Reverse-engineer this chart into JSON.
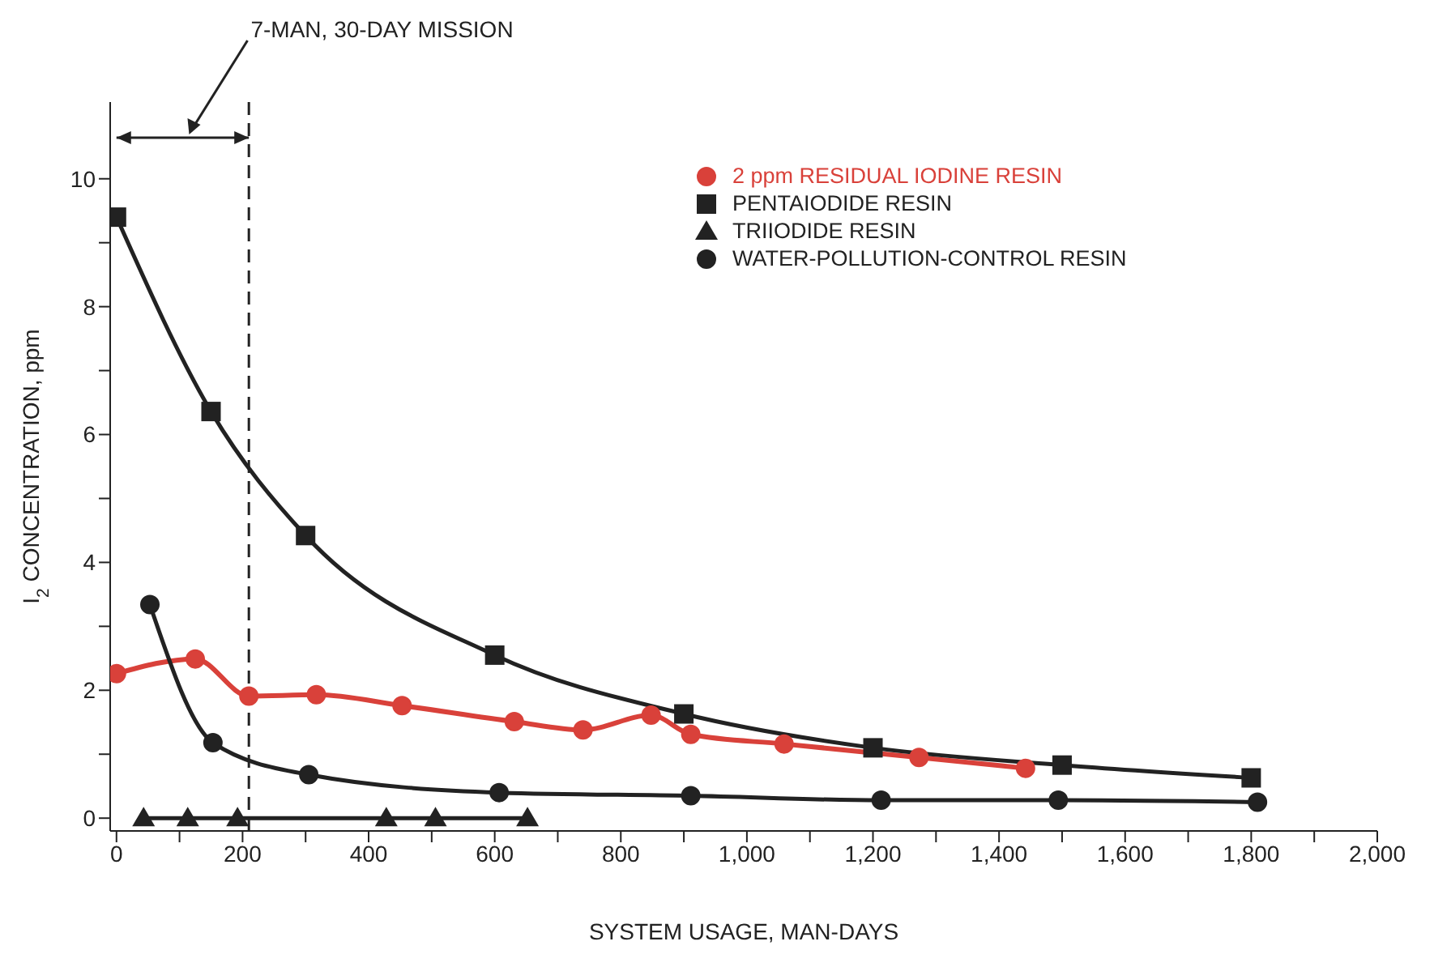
{
  "chart_data": {
    "type": "line",
    "xlabel": "SYSTEM USAGE, MAN-DAYS",
    "ylabel": "I$_{2}$ CONCENTRATION, ppm",
    "xlim": [
      -10,
      2000
    ],
    "ylim": [
      -0.2,
      11.2
    ],
    "xticks": [
      0,
      {
        "value": 100,
        "label": null
      },
      200,
      {
        "value": 300,
        "label": null
      },
      400,
      {
        "value": 500,
        "label": null
      },
      600,
      {
        "value": 700,
        "label": null
      },
      800,
      {
        "value": 900,
        "label": null
      },
      {
        "value": 1000,
        "label": "1,000"
      },
      {
        "value": 1100,
        "label": null
      },
      {
        "value": 1200,
        "label": "1,200"
      },
      {
        "value": 1300,
        "label": null
      },
      {
        "value": 1400,
        "label": "1,400"
      },
      {
        "value": 1500,
        "label": null
      },
      {
        "value": 1600,
        "label": "1,600"
      },
      {
        "value": 1700,
        "label": null
      },
      {
        "value": 1800,
        "label": "1,800"
      },
      {
        "value": 1900,
        "label": null
      },
      {
        "value": 2000,
        "label": "2,000"
      }
    ],
    "yticks": [
      0,
      {
        "value": 1,
        "label": null
      },
      2,
      {
        "value": 3,
        "label": null
      },
      4,
      {
        "value": 5,
        "label": null
      },
      6,
      {
        "value": 7,
        "label": null
      },
      8,
      {
        "value": 9,
        "label": null
      },
      10
    ],
    "legend": "top right",
    "ref_lines": [
      {
        "axis": "x",
        "value": 210,
        "label": "7-MAN, 30-DAY MISSION",
        "line_style": "dashed",
        "color": "#222222"
      }
    ],
    "series": [
      {
        "name": "2 ppm RESIDUAL IODINE RESIN",
        "color": "#d9413a",
        "marker": "circle",
        "x": [
          0,
          125,
          210,
          317,
          453,
          631,
          740,
          848,
          911,
          1059,
          1273,
          1442
        ],
        "values": [
          2.26,
          2.49,
          1.91,
          1.93,
          1.76,
          1.51,
          1.38,
          1.61,
          1.31,
          1.16,
          0.95,
          0.78
        ]
      },
      {
        "name": "PENTAIODIDE RESIN",
        "color": "#222222",
        "marker": "square",
        "x": [
          0,
          150,
          300,
          600,
          900,
          1200,
          1500,
          1800
        ],
        "values": [
          9.4,
          6.36,
          4.42,
          2.55,
          1.63,
          1.1,
          0.83,
          0.63
        ]
      },
      {
        "name": "TRIIODIDE RESIN",
        "color": "#222222",
        "marker": "triangle",
        "x": [
          43,
          113,
          192,
          428,
          506,
          652
        ],
        "values": [
          0,
          0,
          0,
          0,
          0,
          0
        ]
      },
      {
        "name": "WATER-POLLUTION-CONTROL RESIN",
        "color": "#222222",
        "marker": "circle",
        "x": [
          53,
          153,
          305,
          607,
          911,
          1213,
          1494,
          1810
        ],
        "values": [
          3.34,
          1.18,
          0.68,
          0.4,
          0.35,
          0.28,
          0.28,
          0.25
        ]
      }
    ]
  }
}
